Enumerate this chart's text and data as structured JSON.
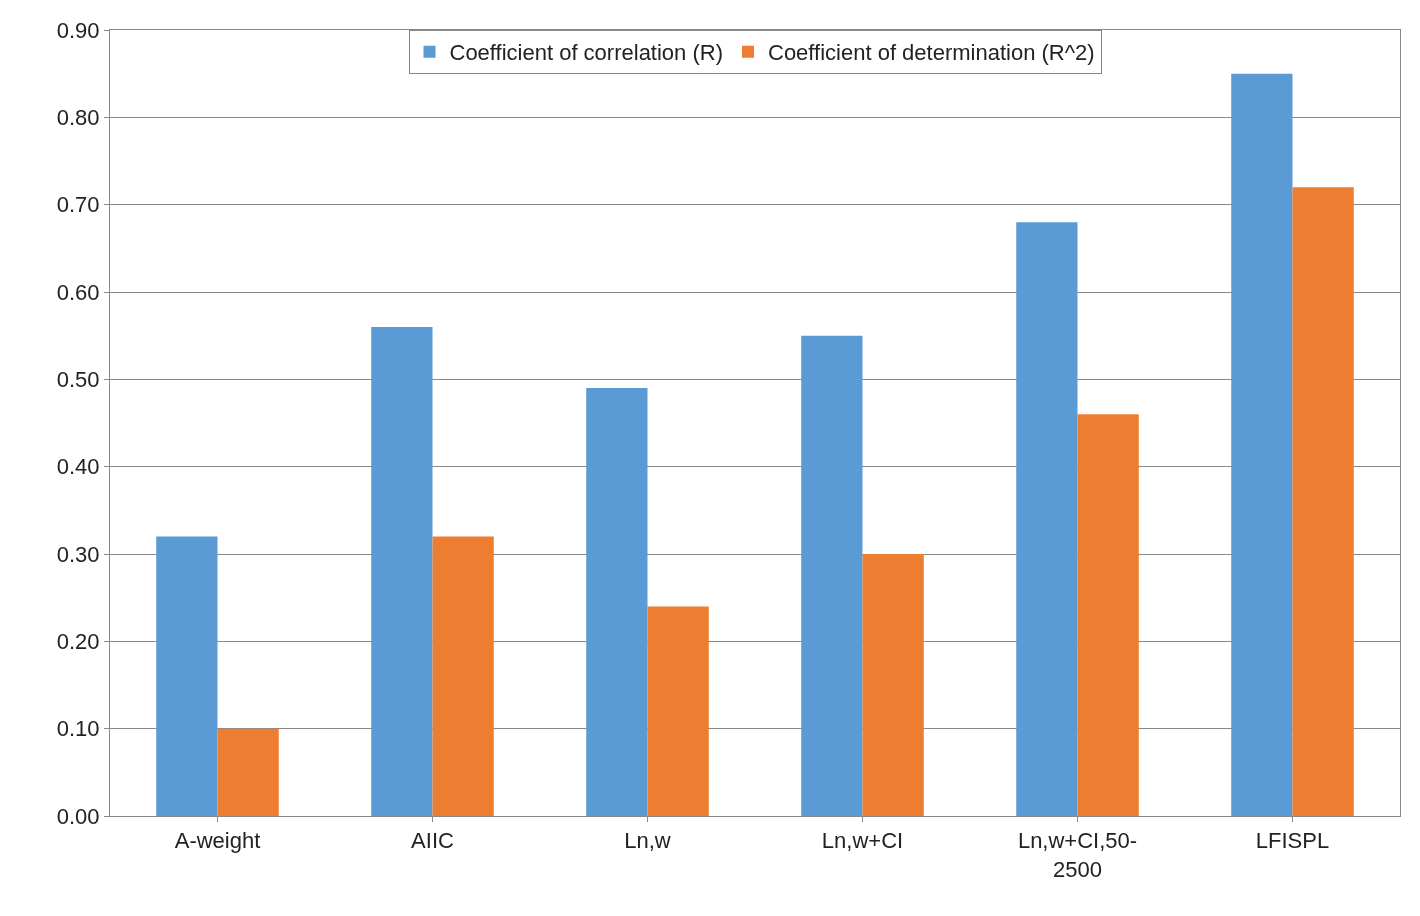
{
  "chart_data": {
    "type": "bar",
    "categories": [
      "A-weight",
      "AIIC",
      "Ln,w",
      "Ln,w+CI",
      "Ln,w+CI,50-2500",
      "LFISPL"
    ],
    "series": [
      {
        "name": "Coefficient of correlation (R)",
        "color": "#5b9bd5",
        "values": [
          0.32,
          0.56,
          0.49,
          0.55,
          0.68,
          0.85
        ]
      },
      {
        "name": "Coefficient of determination (R^2)",
        "color": "#ed7d31",
        "values": [
          0.1,
          0.32,
          0.24,
          0.3,
          0.46,
          0.72
        ]
      }
    ],
    "ylim": [
      0,
      0.9
    ],
    "yticks": [
      {
        "value": 0,
        "label": "0.00"
      },
      {
        "value": 0.1,
        "label": "0.10"
      },
      {
        "value": 0.2,
        "label": "0.20"
      },
      {
        "value": 0.3,
        "label": "0.30"
      },
      {
        "value": 0.4,
        "label": "0.40"
      },
      {
        "value": 0.5,
        "label": "0.50"
      },
      {
        "value": 0.6,
        "label": "0.60"
      },
      {
        "value": 0.7,
        "label": "0.70"
      },
      {
        "value": 0.8,
        "label": "0.80"
      },
      {
        "value": 0.9,
        "label": "0.90"
      }
    ],
    "grid": "y",
    "legend": "top"
  }
}
